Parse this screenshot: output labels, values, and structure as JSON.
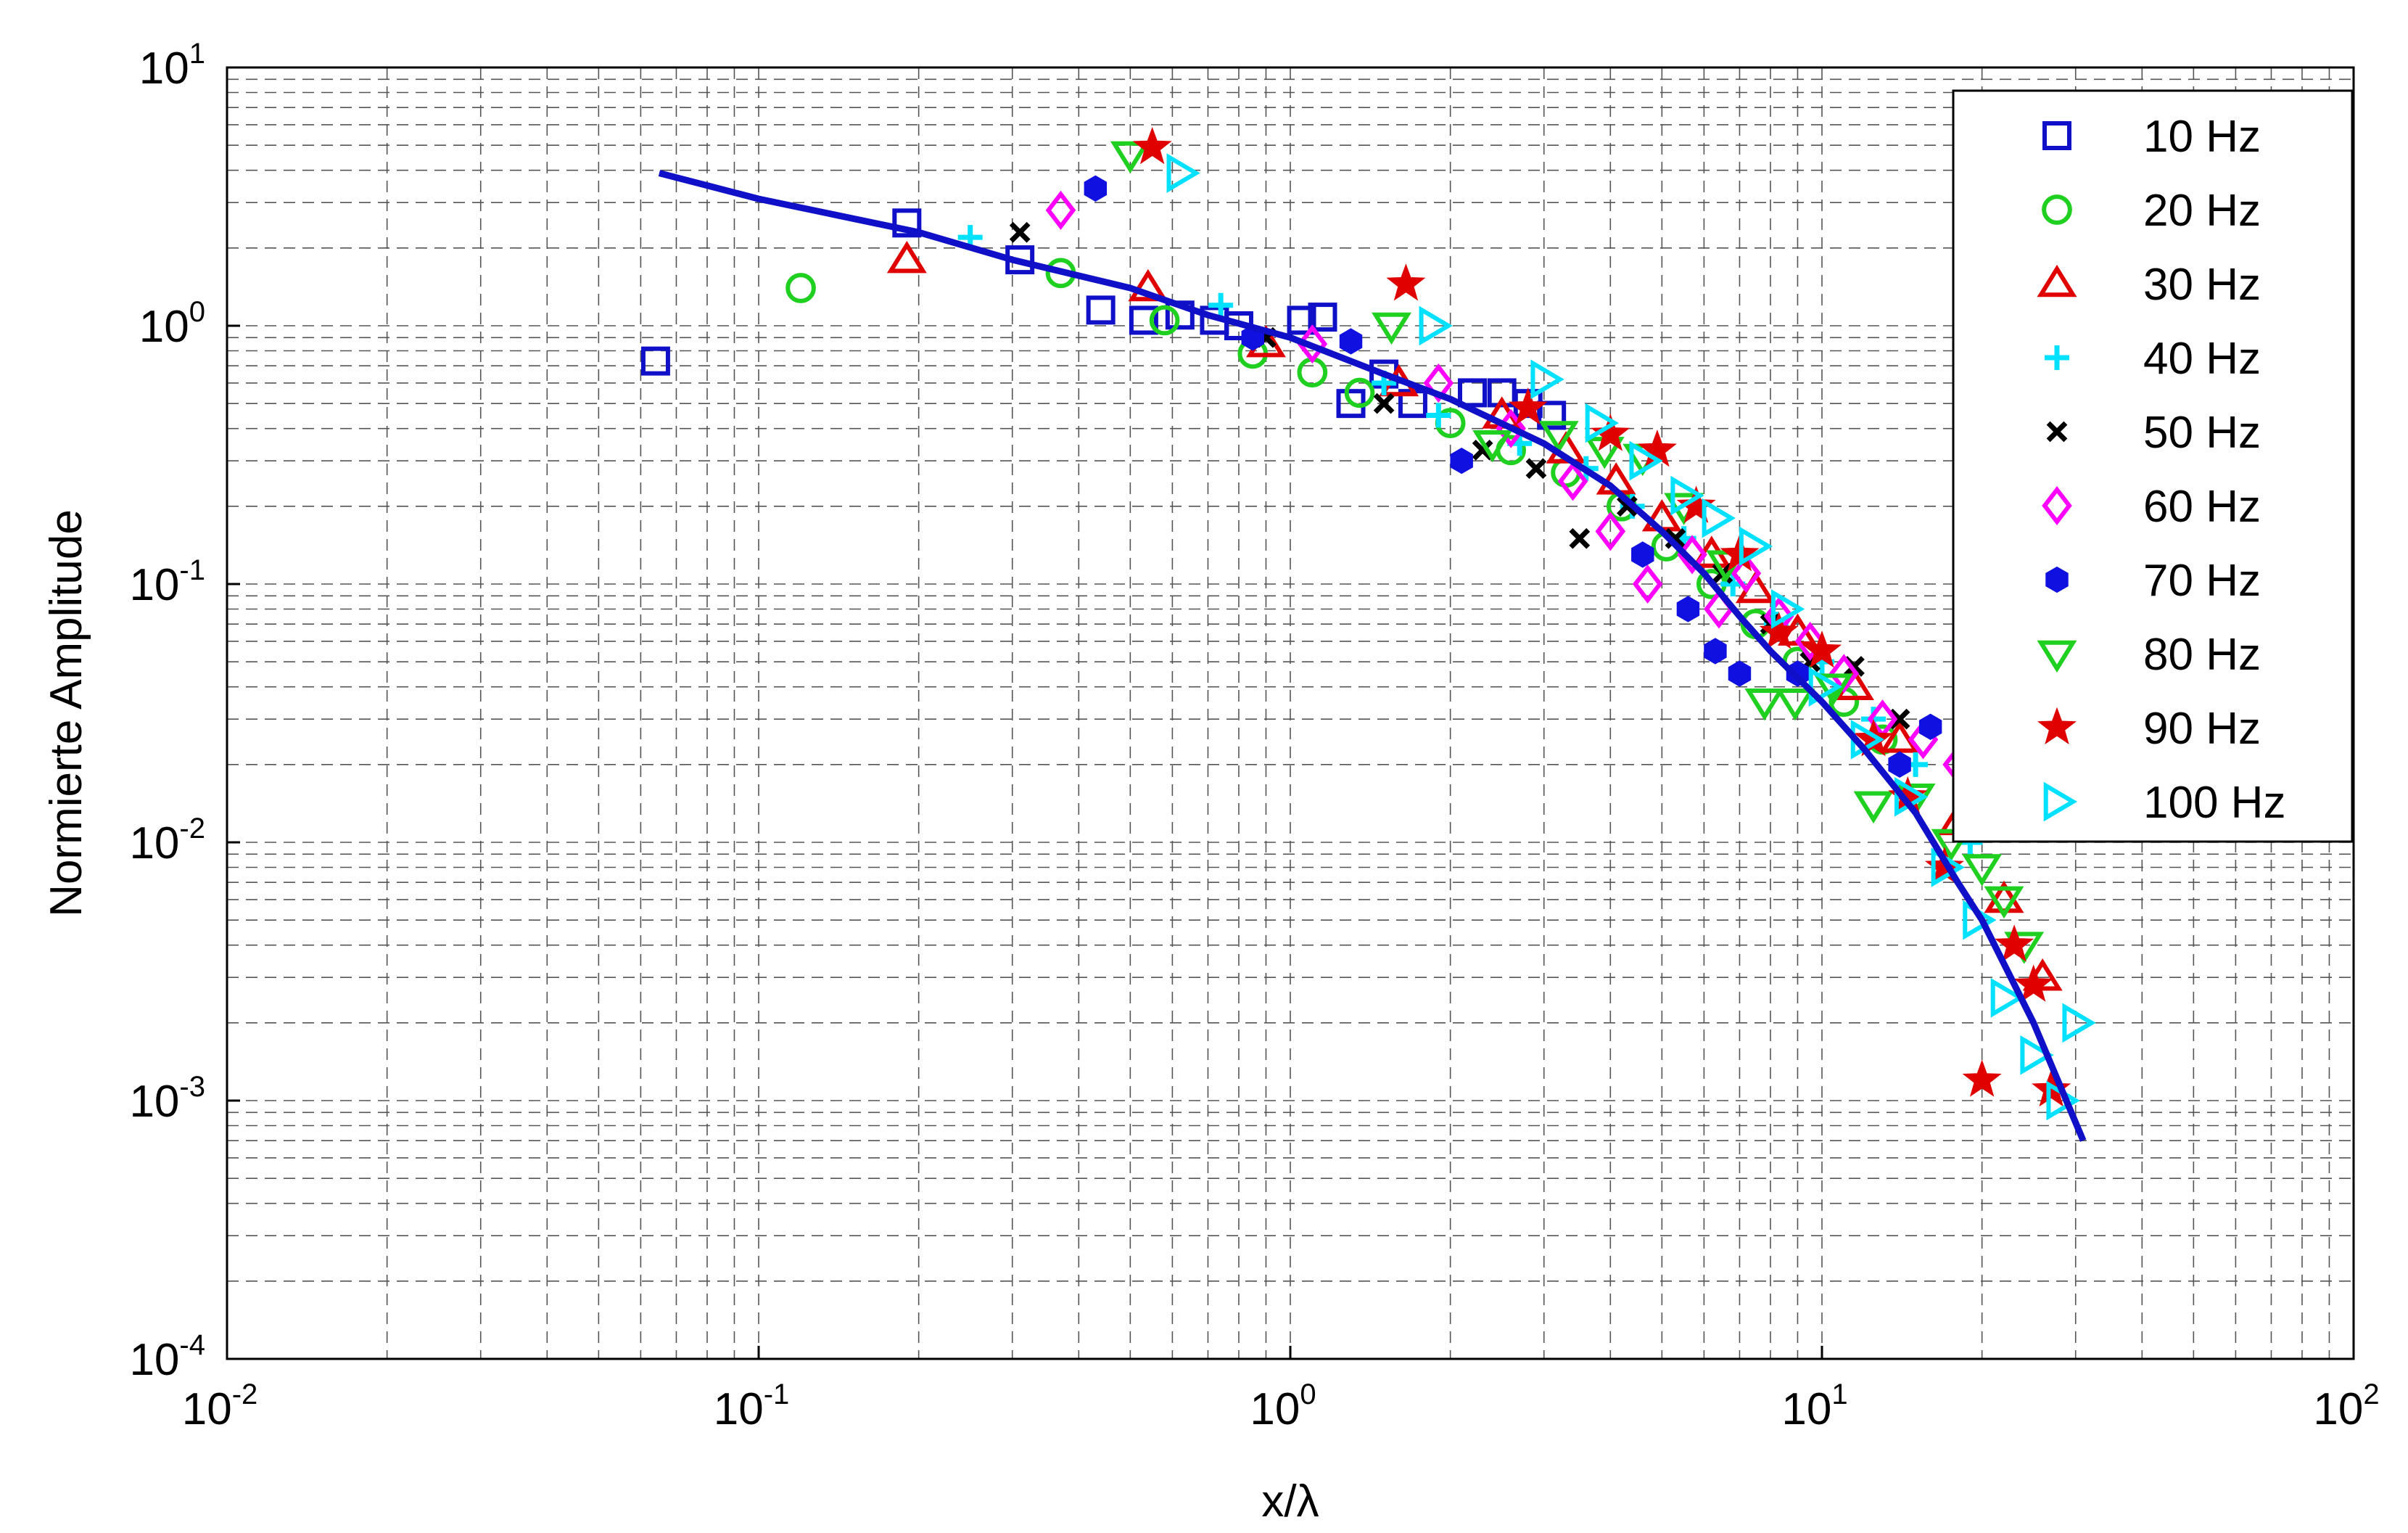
{
  "chart_data": {
    "type": "scatter",
    "xlabel": "x/λ",
    "ylabel": "Normierte Amplitude",
    "xscale": "log",
    "yscale": "log",
    "xlim": [
      0.01,
      100
    ],
    "ylim": [
      0.0001,
      10
    ],
    "grid": true,
    "legend_position": "top-right",
    "x_ticks": [
      {
        "base": "10",
        "exp": "-2"
      },
      {
        "base": "10",
        "exp": "-1"
      },
      {
        "base": "10",
        "exp": "0"
      },
      {
        "base": "10",
        "exp": "1"
      },
      {
        "base": "10",
        "exp": "2"
      }
    ],
    "y_ticks": [
      {
        "base": "10",
        "exp": "-4"
      },
      {
        "base": "10",
        "exp": "-3"
      },
      {
        "base": "10",
        "exp": "-2"
      },
      {
        "base": "10",
        "exp": "-1"
      },
      {
        "base": "10",
        "exp": "0"
      },
      {
        "base": "10",
        "exp": "1"
      }
    ],
    "fit_line": {
      "color": "#1010c8",
      "x": [
        0.065,
        0.1,
        0.2,
        0.3,
        0.5,
        0.7,
        1.0,
        1.5,
        2.0,
        3.0,
        4.0,
        5.0,
        6.0,
        7.0,
        8.0,
        10.0,
        12.0,
        15.0,
        18.0,
        20.0,
        25.0,
        31.0
      ],
      "y": [
        3.9,
        3.1,
        2.3,
        1.8,
        1.4,
        1.1,
        0.9,
        0.65,
        0.52,
        0.35,
        0.24,
        0.16,
        0.11,
        0.075,
        0.055,
        0.035,
        0.023,
        0.013,
        0.007,
        0.005,
        0.002,
        0.0007
      ]
    },
    "series": [
      {
        "name": "10 Hz",
        "marker": "square",
        "color": "#1010c8",
        "x": [
          0.064,
          0.19,
          0.31,
          0.44,
          0.53,
          0.62,
          0.72,
          0.8,
          1.05,
          1.15,
          1.3,
          1.5,
          1.7,
          2.2,
          2.5,
          2.8,
          3.1
        ],
        "y": [
          0.73,
          2.5,
          1.8,
          1.15,
          1.05,
          1.1,
          1.05,
          1.0,
          1.05,
          1.08,
          0.5,
          0.65,
          0.5,
          0.55,
          0.55,
          0.5,
          0.45
        ]
      },
      {
        "name": "20 Hz",
        "marker": "circle",
        "color": "#20d020",
        "x": [
          0.12,
          0.37,
          0.58,
          0.85,
          1.1,
          1.35,
          2.0,
          2.6,
          3.3,
          4.2,
          5.1,
          6.2,
          7.5,
          9.0,
          11.0,
          13.0
        ],
        "y": [
          1.4,
          1.6,
          1.05,
          0.78,
          0.66,
          0.55,
          0.42,
          0.33,
          0.27,
          0.2,
          0.14,
          0.1,
          0.07,
          0.05,
          0.035,
          0.025
        ]
      },
      {
        "name": "30 Hz",
        "marker": "triangle-up",
        "color": "#e00000",
        "x": [
          0.19,
          0.54,
          0.9,
          1.6,
          2.5,
          3.3,
          4.1,
          5.0,
          6.2,
          7.5,
          9.0,
          11.5,
          14.0,
          18.0,
          22.0,
          26.0
        ],
        "y": [
          1.8,
          1.4,
          0.85,
          0.6,
          0.45,
          0.33,
          0.25,
          0.18,
          0.13,
          0.095,
          0.065,
          0.04,
          0.025,
          0.012,
          0.006,
          0.003
        ]
      },
      {
        "name": "40 Hz",
        "marker": "plus",
        "color": "#00e0ff",
        "x": [
          0.25,
          0.74,
          1.5,
          1.9,
          2.7,
          3.6,
          4.4,
          5.5,
          6.8,
          8.2,
          10.0,
          12.5,
          15.0,
          19.0
        ],
        "y": [
          2.2,
          1.2,
          0.6,
          0.45,
          0.35,
          0.28,
          0.2,
          0.15,
          0.1,
          0.07,
          0.05,
          0.03,
          0.02,
          0.01
        ]
      },
      {
        "name": "50 Hz",
        "marker": "x",
        "color": "#000000",
        "x": [
          0.31,
          0.9,
          1.5,
          2.3,
          2.9,
          3.5,
          4.3,
          5.3,
          6.5,
          8.0,
          9.5,
          11.5,
          14.0
        ],
        "y": [
          2.3,
          0.9,
          0.5,
          0.33,
          0.28,
          0.15,
          0.2,
          0.15,
          0.11,
          0.07,
          0.05,
          0.048,
          0.03
        ]
      },
      {
        "name": "60 Hz",
        "marker": "diamond",
        "color": "#ff00ff",
        "x": [
          0.37,
          1.1,
          1.9,
          2.6,
          3.4,
          4.0,
          4.7,
          5.7,
          6.4,
          7.2,
          8.3,
          9.5,
          11.0,
          13.0,
          15.5,
          18.0
        ],
        "y": [
          2.8,
          0.85,
          0.6,
          0.4,
          0.25,
          0.16,
          0.1,
          0.13,
          0.08,
          0.11,
          0.075,
          0.06,
          0.045,
          0.03,
          0.025,
          0.02
        ]
      },
      {
        "name": "70 Hz",
        "marker": "hexagon",
        "color": "#1010e0",
        "x": [
          0.43,
          0.85,
          1.3,
          2.1,
          4.6,
          5.6,
          6.3,
          7.0,
          9.0,
          14.0,
          16.0
        ],
        "y": [
          3.4,
          0.9,
          0.87,
          0.3,
          0.13,
          0.08,
          0.055,
          0.045,
          0.045,
          0.02,
          0.028
        ]
      },
      {
        "name": "80 Hz",
        "marker": "triangle-down",
        "color": "#20d020",
        "x": [
          0.5,
          1.55,
          2.4,
          3.2,
          3.9,
          4.6,
          5.5,
          6.6,
          7.8,
          8.9,
          10.5,
          12.5,
          15.0,
          17.5,
          20.0,
          22.0,
          24.0
        ],
        "y": [
          4.6,
          1.0,
          0.35,
          0.38,
          0.33,
          0.31,
          0.2,
          0.12,
          0.035,
          0.035,
          0.04,
          0.014,
          0.015,
          0.01,
          0.008,
          0.006,
          0.004
        ]
      },
      {
        "name": "90 Hz",
        "marker": "star",
        "color": "#e00000",
        "x": [
          0.55,
          1.65,
          2.8,
          4.0,
          4.9,
          5.8,
          7.0,
          8.3,
          10.0,
          12.5,
          14.5,
          17.0,
          20.0,
          23.0,
          25.0,
          27.0
        ],
        "y": [
          4.9,
          1.45,
          0.48,
          0.38,
          0.33,
          0.2,
          0.13,
          0.065,
          0.055,
          0.025,
          0.015,
          0.008,
          0.0012,
          0.004,
          0.0028,
          0.0011
        ]
      },
      {
        "name": "100 Hz",
        "marker": "triangle-right",
        "color": "#00e0ff",
        "x": [
          0.62,
          1.85,
          3.0,
          3.8,
          4.6,
          5.5,
          6.3,
          7.4,
          8.5,
          10.0,
          12.0,
          14.5,
          17.0,
          19.5,
          22.0,
          25.0,
          28.0,
          30.0
        ],
        "y": [
          3.9,
          1.0,
          0.62,
          0.42,
          0.3,
          0.22,
          0.18,
          0.14,
          0.08,
          0.04,
          0.025,
          0.015,
          0.008,
          0.005,
          0.0025,
          0.0015,
          0.001,
          0.002
        ]
      }
    ]
  }
}
